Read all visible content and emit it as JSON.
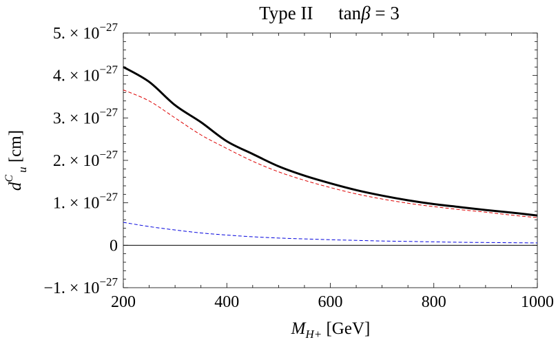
{
  "chart_data": {
    "type": "line",
    "title": {
      "main": "Type II",
      "param_prefix": "tan",
      "param_symbol": "β",
      "param_suffix": " = 3"
    },
    "xlabel": {
      "main": "M",
      "sub": "H+",
      "unit": " [GeV]"
    },
    "ylabel": {
      "main": "d",
      "sup": "C",
      "sub": "u",
      "unit": " [cm]"
    },
    "xlim": [
      200,
      1000
    ],
    "ylim": [
      -1e-27,
      5e-27
    ],
    "x_ticks": [
      {
        "value": 200,
        "label": "200"
      },
      {
        "value": 400,
        "label": "400"
      },
      {
        "value": 600,
        "label": "600"
      },
      {
        "value": 800,
        "label": "800"
      },
      {
        "value": 1000,
        "label": "1000"
      }
    ],
    "y_ticks": [
      {
        "value": 5e-27,
        "mant": "5.",
        "exp": "−27",
        "label": ""
      },
      {
        "value": 4e-27,
        "mant": "4.",
        "exp": "−27",
        "label": ""
      },
      {
        "value": 3e-27,
        "mant": "3.",
        "exp": "−27",
        "label": ""
      },
      {
        "value": 2e-27,
        "mant": "2.",
        "exp": "−27",
        "label": ""
      },
      {
        "value": 1e-27,
        "mant": "1.",
        "exp": "−27",
        "label": ""
      },
      {
        "value": 0,
        "mant": "",
        "exp": "",
        "label": "0"
      },
      {
        "value": -1e-27,
        "mant": "−1.",
        "exp": "−27",
        "label": ""
      }
    ],
    "tick_times": "× 10",
    "series": [
      {
        "style": "solid",
        "color": "#000000",
        "x": [
          200,
          250,
          300,
          350,
          400,
          450,
          500,
          550,
          600,
          650,
          700,
          750,
          800,
          850,
          900,
          950,
          1000
        ],
        "y": [
          4.2e-27,
          3.85e-27,
          3.3e-27,
          2.9e-27,
          2.45e-27,
          2.15e-27,
          1.86e-27,
          1.64e-27,
          1.46e-27,
          1.3e-27,
          1.17e-27,
          1.06e-27,
          9.7e-28,
          9e-28,
          8.3e-28,
          7.7e-28,
          7e-28
        ]
      },
      {
        "style": "dashed",
        "color": "#dd0000",
        "x": [
          200,
          250,
          300,
          350,
          400,
          450,
          500,
          550,
          600,
          650,
          700,
          750,
          800,
          850,
          900,
          950,
          1000
        ],
        "y": [
          3.66e-27,
          3.4e-27,
          3e-27,
          2.6e-27,
          2.28e-27,
          1.98e-27,
          1.73e-27,
          1.53e-27,
          1.36e-27,
          1.21e-27,
          1.09e-27,
          9.9e-28,
          9.1e-28,
          8.4e-28,
          7.8e-28,
          7.1e-28,
          6.5e-28
        ]
      },
      {
        "style": "dashed",
        "color": "#0000dd",
        "x": [
          200,
          250,
          300,
          350,
          400,
          450,
          500,
          550,
          600,
          650,
          700,
          750,
          800,
          850,
          900,
          950,
          1000
        ],
        "y": [
          5.4e-28,
          4.4e-28,
          3.6e-28,
          2.9e-28,
          2.4e-28,
          2e-28,
          1.7e-28,
          1.5e-28,
          1.3e-28,
          1.15e-28,
          1e-28,
          9e-29,
          8e-29,
          7e-29,
          6.5e-29,
          6e-29,
          5.5e-29
        ]
      }
    ],
    "grid": false,
    "zero_line": true
  }
}
